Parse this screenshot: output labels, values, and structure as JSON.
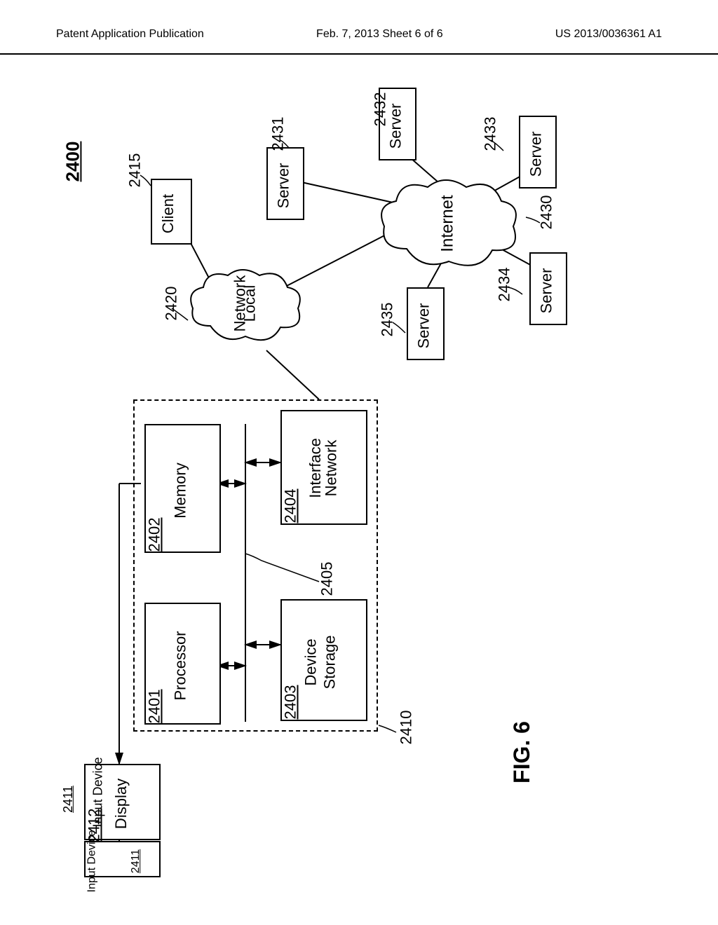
{
  "header": {
    "left": "Patent Application Publication",
    "center": "Feb. 7, 2013  Sheet 6 of 6",
    "right": "US 2013/0036361 A1"
  },
  "diagram": {
    "label_main": "2400",
    "figure_label": "FIG. 6",
    "nodes": {
      "client": {
        "label": "Client",
        "ref": "2415"
      },
      "server1": {
        "label": "Server",
        "ref": "2431"
      },
      "server2": {
        "label": "Server",
        "ref": "2432"
      },
      "server3": {
        "label": "Server",
        "ref": "2433"
      },
      "server4": {
        "label": "Server",
        "ref": "2434"
      },
      "server5": {
        "label": "Server",
        "ref": "2435"
      },
      "local_network": {
        "label1": "Local",
        "label2": "Network",
        "ref": "2420"
      },
      "internet": {
        "label": "Internet",
        "ref": "2430"
      },
      "computer_box": {
        "ref": "2410"
      },
      "memory": {
        "label": "Memory",
        "ref": "2402"
      },
      "network_interface": {
        "label1": "Network",
        "label2": "Interface",
        "ref": "2404"
      },
      "processor": {
        "label": "Processor",
        "ref": "2401"
      },
      "storage": {
        "label1": "Storage",
        "label2": "Device",
        "ref": "2403"
      },
      "display": {
        "label": "Display",
        "ref": "2412"
      },
      "input_device": {
        "label": "Input Device",
        "ref": "2411"
      },
      "bus": {
        "ref": "2405"
      }
    },
    "colors": {
      "stroke": "#000000",
      "bg": "#ffffff"
    }
  }
}
